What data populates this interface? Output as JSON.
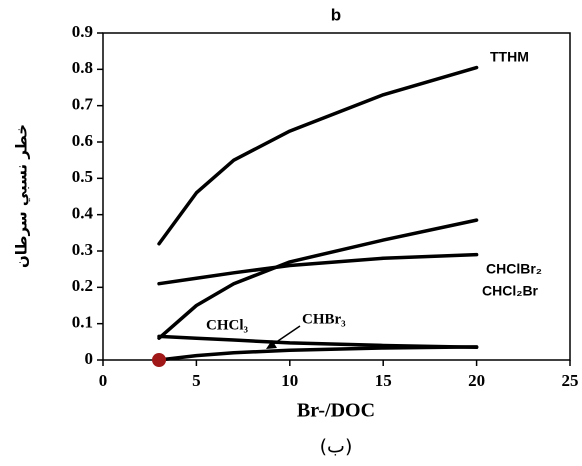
{
  "chart_data": {
    "type": "line",
    "title": "b",
    "caption": "(ب)",
    "xlabel": "Br-/DOC",
    "ylabel": "خطر نسبي سرطان",
    "x": [
      3,
      5,
      7,
      10,
      15,
      20
    ],
    "series": [
      {
        "name": "TTHM",
        "color": "#000000",
        "values": [
          0.32,
          0.46,
          0.55,
          0.63,
          0.73,
          0.805
        ]
      },
      {
        "name": "CHClBr₂",
        "color": "#000000",
        "values": [
          0.06,
          0.15,
          0.21,
          0.27,
          0.33,
          0.385
        ]
      },
      {
        "name": "CHCl₂Br",
        "color": "#000000",
        "values": [
          0.21,
          0.225,
          0.24,
          0.26,
          0.28,
          0.29
        ]
      },
      {
        "name": "CHCl₃",
        "color": "#000000",
        "values": [
          0.065,
          0.06,
          0.055,
          0.047,
          0.04,
          0.035
        ]
      },
      {
        "name": "CHBr₃",
        "color": "#000000",
        "values": [
          0,
          0.012,
          0.02,
          0.027,
          0.033,
          0.036
        ]
      }
    ],
    "highlight_point": {
      "x": 3,
      "y": 0,
      "color": "#a01818"
    },
    "xlim": [
      0,
      25
    ],
    "xticks": [
      0,
      5,
      10,
      15,
      20,
      25
    ],
    "ylim": [
      0,
      0.9
    ],
    "yticks": [
      0,
      0.1,
      0.2,
      0.3,
      0.4,
      0.5,
      0.6,
      0.7,
      0.8,
      0.9
    ],
    "grid": false
  }
}
